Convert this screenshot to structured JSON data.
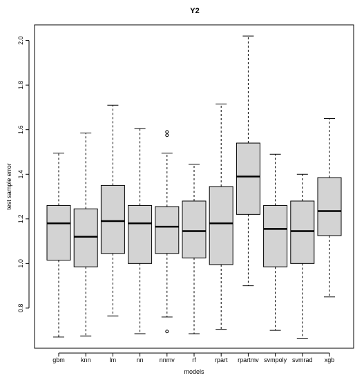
{
  "chart_data": {
    "type": "boxplot",
    "title": "Y2",
    "xlabel": "models",
    "ylabel": "test sample error",
    "ylim": [
      0.62,
      2.07
    ],
    "yticks": [
      0.8,
      1.0,
      1.2,
      1.4,
      1.6,
      1.8,
      2.0
    ],
    "ytick_labels": [
      "0.8",
      "1.0",
      "1.2",
      "1.4",
      "1.6",
      "1.8",
      "2.0"
    ],
    "grid": false,
    "box_color": "#d3d3d3",
    "categories": [
      "gbm",
      "knn",
      "lm",
      "nn",
      "nnmv",
      "rf",
      "rpart",
      "rpartmv",
      "svmpoly",
      "svmrad",
      "xgb"
    ],
    "boxes": [
      {
        "name": "gbm",
        "min": 0.67,
        "q1": 1.015,
        "median": 1.18,
        "q3": 1.26,
        "max": 1.495,
        "outliers": []
      },
      {
        "name": "knn",
        "min": 0.675,
        "q1": 0.985,
        "median": 1.12,
        "q3": 1.245,
        "max": 1.585,
        "outliers": []
      },
      {
        "name": "lm",
        "min": 0.765,
        "q1": 1.045,
        "median": 1.19,
        "q3": 1.35,
        "max": 1.71,
        "outliers": []
      },
      {
        "name": "nn",
        "min": 0.685,
        "q1": 1.0,
        "median": 1.18,
        "q3": 1.26,
        "max": 1.605,
        "outliers": []
      },
      {
        "name": "nnmv",
        "min": 0.76,
        "q1": 1.045,
        "median": 1.165,
        "q3": 1.255,
        "max": 1.495,
        "outliers": [
          0.695,
          1.575,
          1.59
        ]
      },
      {
        "name": "rf",
        "min": 0.685,
        "q1": 1.025,
        "median": 1.145,
        "q3": 1.28,
        "max": 1.445,
        "outliers": []
      },
      {
        "name": "rpart",
        "min": 0.705,
        "q1": 0.995,
        "median": 1.18,
        "q3": 1.345,
        "max": 1.715,
        "outliers": []
      },
      {
        "name": "rpartmv",
        "min": 0.9,
        "q1": 1.22,
        "median": 1.39,
        "q3": 1.54,
        "max": 2.02,
        "outliers": []
      },
      {
        "name": "svmpoly",
        "min": 0.7,
        "q1": 0.985,
        "median": 1.155,
        "q3": 1.26,
        "max": 1.49,
        "outliers": []
      },
      {
        "name": "svmrad",
        "min": 0.665,
        "q1": 1.0,
        "median": 1.145,
        "q3": 1.28,
        "max": 1.4,
        "outliers": []
      },
      {
        "name": "xgb",
        "min": 0.85,
        "q1": 1.125,
        "median": 1.235,
        "q3": 1.385,
        "max": 1.65,
        "outliers": []
      }
    ]
  }
}
